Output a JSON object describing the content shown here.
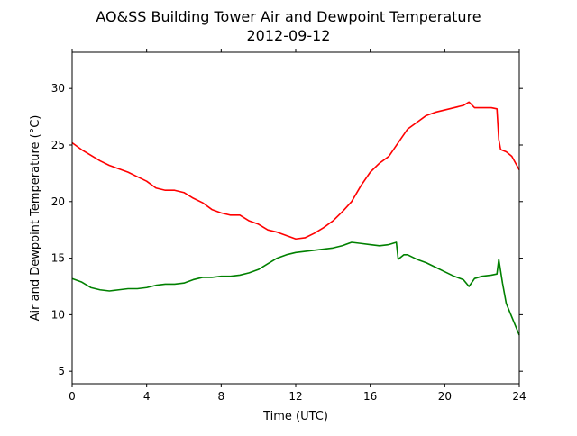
{
  "chart_data": {
    "type": "line",
    "title": "AO&SS Building Tower Air and Dewpoint Temperature",
    "subtitle": "2012-09-12",
    "xlabel": "Time (UTC)",
    "ylabel": "Air and Dewpoint Temperature (°C)",
    "xlim": [
      0,
      24
    ],
    "ylim": [
      3.9,
      33.2
    ],
    "xticks": [
      0,
      4,
      8,
      12,
      16,
      20,
      24
    ],
    "yticks": [
      5,
      10,
      15,
      20,
      25,
      30
    ],
    "grid": false,
    "legend": "none",
    "series": [
      {
        "color": "#ff0000",
        "x": [
          0,
          0.5,
          1,
          1.5,
          2,
          2.5,
          3,
          3.5,
          4,
          4.5,
          5,
          5.5,
          6,
          6.5,
          7,
          7.5,
          8,
          8.5,
          9,
          9.5,
          10,
          10.5,
          11,
          11.5,
          12,
          12.5,
          13,
          13.5,
          14,
          14.5,
          15,
          15.5,
          16,
          16.5,
          17,
          17.5,
          18,
          18.5,
          19,
          19.5,
          20,
          20.5,
          21,
          21.3,
          21.6,
          22,
          22.5,
          22.8,
          22.9,
          23,
          23.3,
          23.6,
          24
        ],
        "y": [
          25.2,
          24.6,
          24.1,
          23.6,
          23.2,
          22.9,
          22.6,
          22.2,
          21.8,
          21.2,
          21.0,
          21.0,
          20.8,
          20.3,
          19.9,
          19.3,
          19.0,
          18.8,
          18.8,
          18.3,
          18.0,
          17.5,
          17.3,
          17.0,
          16.7,
          16.8,
          17.2,
          17.7,
          18.3,
          19.1,
          20.0,
          21.4,
          22.6,
          23.4,
          24.0,
          25.2,
          26.4,
          27.0,
          27.6,
          27.9,
          28.1,
          28.3,
          28.5,
          28.8,
          28.3,
          28.3,
          28.3,
          28.2,
          25.5,
          24.6,
          24.4,
          24.0,
          22.8
        ]
      },
      {
        "color": "#008000",
        "x": [
          0,
          0.5,
          1,
          1.5,
          2,
          2.5,
          3,
          3.5,
          4,
          4.5,
          5,
          5.5,
          6,
          6.5,
          7,
          7.5,
          8,
          8.5,
          9,
          9.5,
          10,
          10.5,
          11,
          11.5,
          12,
          12.5,
          13,
          13.5,
          14,
          14.5,
          15,
          15.5,
          16,
          16.5,
          17,
          17.4,
          17.5,
          17.8,
          18,
          18.5,
          19,
          19.5,
          20,
          20.5,
          21,
          21.3,
          21.6,
          22,
          22.5,
          22.8,
          22.9,
          23.1,
          23.3,
          23.6,
          24
        ],
        "y": [
          13.2,
          12.9,
          12.4,
          12.2,
          12.1,
          12.2,
          12.3,
          12.3,
          12.4,
          12.6,
          12.7,
          12.7,
          12.8,
          13.1,
          13.3,
          13.3,
          13.4,
          13.4,
          13.5,
          13.7,
          14.0,
          14.5,
          15.0,
          15.3,
          15.5,
          15.6,
          15.7,
          15.8,
          15.9,
          16.1,
          16.4,
          16.3,
          16.2,
          16.1,
          16.2,
          16.4,
          14.9,
          15.3,
          15.3,
          14.9,
          14.6,
          14.2,
          13.8,
          13.4,
          13.1,
          12.5,
          13.2,
          13.4,
          13.5,
          13.6,
          14.9,
          12.8,
          11.0,
          9.8,
          8.2
        ]
      }
    ]
  }
}
